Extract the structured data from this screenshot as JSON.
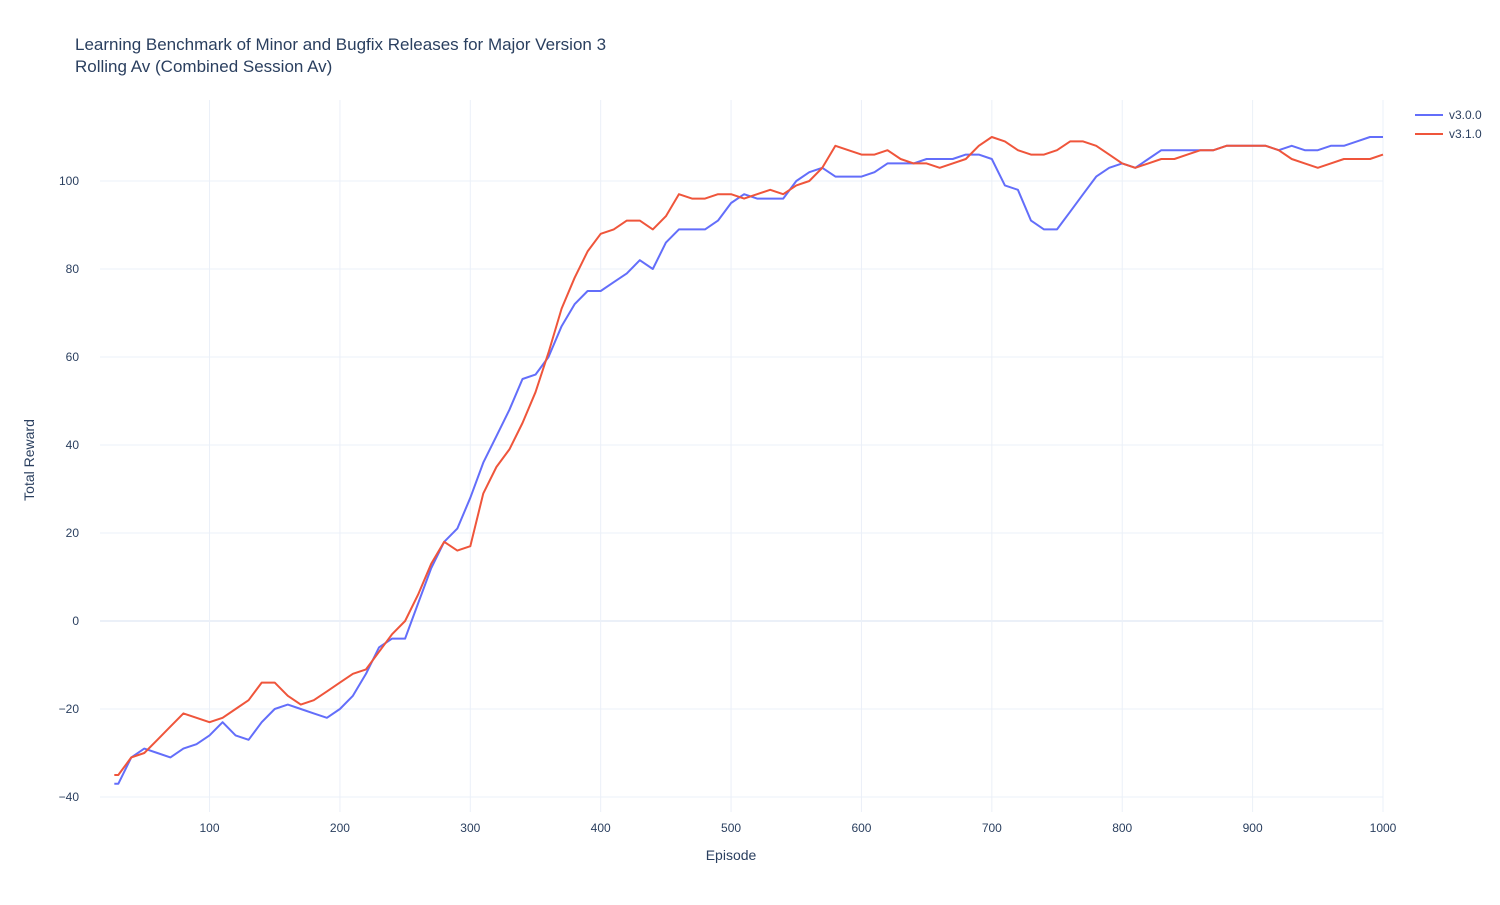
{
  "chart_data": {
    "type": "line",
    "title": "Learning Benchmark of Minor and Bugfix Releases for Major Version 3",
    "subtitle": "Rolling Av (Combined Session Av)",
    "x_label": "Episode",
    "y_label": "Total Reward",
    "x": [
      27,
      30,
      40,
      50,
      60,
      70,
      80,
      90,
      100,
      110,
      120,
      130,
      140,
      150,
      160,
      170,
      180,
      190,
      200,
      210,
      220,
      230,
      240,
      250,
      260,
      270,
      280,
      290,
      300,
      310,
      320,
      330,
      340,
      350,
      360,
      370,
      380,
      390,
      400,
      410,
      420,
      430,
      440,
      450,
      460,
      470,
      480,
      490,
      500,
      510,
      520,
      530,
      540,
      550,
      560,
      570,
      580,
      590,
      600,
      610,
      620,
      630,
      640,
      650,
      660,
      670,
      680,
      690,
      700,
      710,
      720,
      730,
      740,
      750,
      760,
      770,
      780,
      790,
      800,
      810,
      820,
      830,
      840,
      850,
      860,
      870,
      880,
      890,
      900,
      910,
      920,
      930,
      940,
      950,
      960,
      970,
      980,
      990,
      1000
    ],
    "series": [
      {
        "name": "v3.0.0",
        "color": "#636efa",
        "values": [
          -37,
          -37,
          -31,
          -29,
          -30,
          -31,
          -29,
          -28,
          -26,
          -23,
          -26,
          -27,
          -23,
          -20,
          -19,
          -20,
          -21,
          -22,
          -20,
          -17,
          -12,
          -6,
          -4,
          -4,
          4,
          12,
          18,
          21,
          28,
          36,
          42,
          48,
          55,
          56,
          60,
          67,
          72,
          75,
          75,
          77,
          79,
          82,
          80,
          86,
          89,
          89,
          89,
          91,
          95,
          97,
          96,
          96,
          96,
          100,
          102,
          103,
          101,
          101,
          101,
          102,
          104,
          104,
          104,
          105,
          105,
          105,
          106,
          106,
          105,
          99,
          98,
          91,
          89,
          89,
          93,
          97,
          101,
          103,
          104,
          103,
          105,
          107,
          107,
          107,
          107,
          107,
          108,
          108,
          108,
          108,
          107,
          108,
          107,
          107,
          108,
          108,
          109,
          110,
          110
        ]
      },
      {
        "name": "v3.1.0",
        "color": "#ef553b",
        "values": [
          -35,
          -35,
          -31,
          -30,
          -27,
          -24,
          -21,
          -22,
          -23,
          -22,
          -20,
          -18,
          -14,
          -14,
          -17,
          -19,
          -18,
          -16,
          -14,
          -12,
          -11,
          -7,
          -3,
          0,
          6,
          13,
          18,
          16,
          17,
          29,
          35,
          39,
          45,
          52,
          61,
          71,
          78,
          84,
          88,
          89,
          91,
          91,
          89,
          92,
          97,
          96,
          96,
          97,
          97,
          96,
          97,
          98,
          97,
          99,
          100,
          103,
          108,
          107,
          106,
          106,
          107,
          105,
          104,
          104,
          103,
          104,
          105,
          108,
          110,
          109,
          107,
          106,
          106,
          107,
          109,
          109,
          108,
          106,
          104,
          103,
          104,
          105,
          105,
          106,
          107,
          107,
          108,
          108,
          108,
          108,
          107,
          105,
          104,
          103,
          104,
          105,
          105,
          105,
          106
        ]
      }
    ],
    "xlim": [
      16,
      1000
    ],
    "ylim": [
      -43.4,
      118.4
    ],
    "xticks": [
      100,
      200,
      300,
      400,
      500,
      600,
      700,
      800,
      900,
      1000
    ],
    "yticks": [
      {
        "value": -40,
        "label": "−40"
      },
      {
        "value": -20,
        "label": "−20"
      },
      0,
      20,
      40,
      60,
      80,
      100
    ],
    "grid": true,
    "legend": "top-right"
  }
}
